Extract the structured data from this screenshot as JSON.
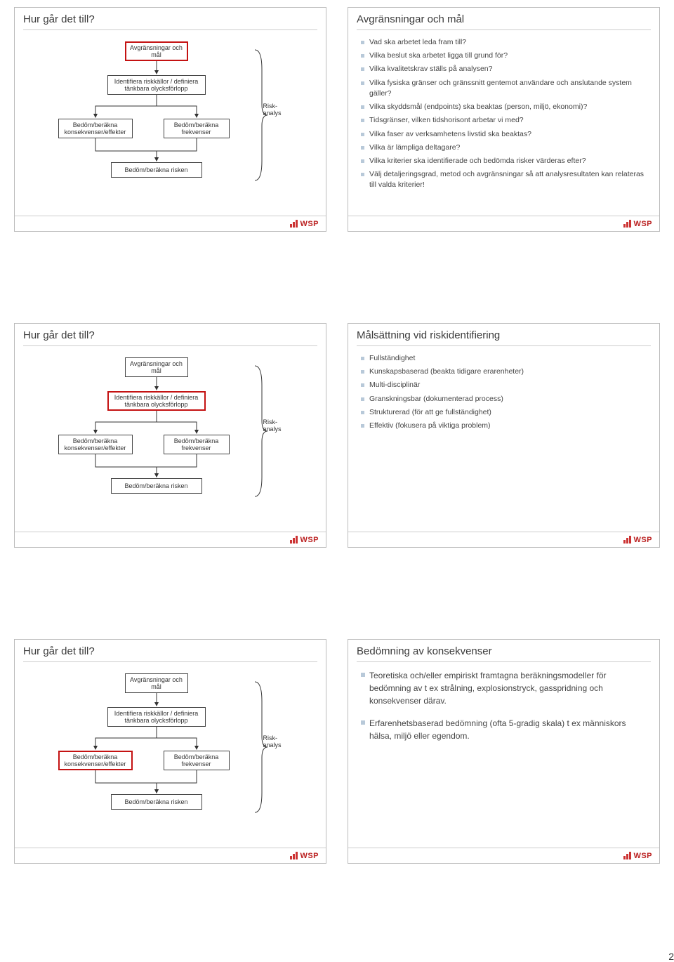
{
  "page_number": "2",
  "logo_text": "WSP",
  "colors": {
    "slide_border": "#bbbbbb",
    "rule": "#cccccc",
    "text": "#3a3a3a",
    "bullet": "#b8c9d9",
    "box_border": "#444444",
    "highlight_border": "#c41212",
    "logo_red": "#c42424"
  },
  "flow": {
    "nodes": {
      "n1": "Avgränsningar och mål",
      "n2": "Identifiera riskkällor / definiera tänkbara olycksförlopp",
      "n3": "Bedöm/beräkna konsekvenser/effekter",
      "n4": "Bedöm/beräkna frekvenser",
      "n5": "Bedöm/beräkna risken"
    },
    "bracket_label_top": "Risk-",
    "bracket_label_bot": "analys"
  },
  "slides": [
    {
      "title": "Hur går det till?",
      "type": "flow",
      "highlight": "n1"
    },
    {
      "title": "Avgränsningar och mål",
      "type": "bullets",
      "size": "small",
      "items": [
        "Vad ska arbetet leda fram till?",
        "Vilka beslut ska arbetet ligga till grund för?",
        "Vilka kvalitetskrav ställs på analysen?",
        "Vilka fysiska gränser och gränssnitt gentemot användare och anslutande system gäller?",
        "Vilka skyddsmål (endpoints) ska beaktas (person, miljö, ekonomi)?",
        "Tidsgränser, vilken tidshorisont arbetar vi med?",
        "Vilka faser av verksamhetens livstid ska beaktas?",
        "Vilka är lämpliga deltagare?",
        "Vilka kriterier ska identifierade och bedömda risker värderas efter?",
        "Välj detaljeringsgrad, metod och avgränsningar så att analysresultaten kan relateras till valda kriterier!"
      ]
    },
    {
      "title": "Hur går det till?",
      "type": "flow",
      "highlight": "n2"
    },
    {
      "title": "Målsättning vid riskidentifiering",
      "type": "bullets",
      "size": "small",
      "items": [
        "Fullständighet",
        "Kunskapsbaserad (beakta tidigare erarenheter)",
        "Multi-disciplinär",
        "Granskningsbar (dokumenterad process)",
        "Strukturerad (för att ge fullständighet)",
        "Effektiv (fokusera på viktiga problem)"
      ]
    },
    {
      "title": "Hur går det till?",
      "type": "flow",
      "highlight": "n3"
    },
    {
      "title": "Bedömning av konsekvenser",
      "type": "bullets",
      "size": "large",
      "items": [
        "Teoretiska och/eller empiriskt framtagna beräkningsmodeller för bedömning av t ex strålning, explosionstryck, gasspridning och konsekvenser därav.",
        "Erfarenhetsbaserad bedömning (ofta 5-gradig skala) t ex människors hälsa, miljö eller egendom."
      ]
    }
  ]
}
